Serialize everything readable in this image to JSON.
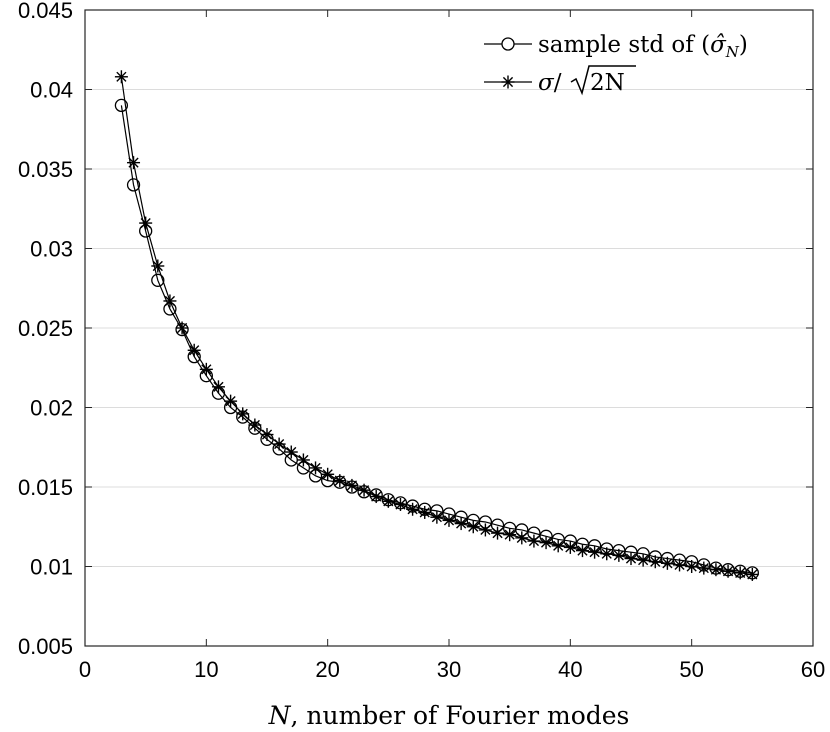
{
  "chart_data": {
    "type": "line",
    "xlabel": {
      "var": "N",
      "rest": ", number of Fourier modes"
    },
    "xlim": [
      0,
      60
    ],
    "ylim": [
      0.005,
      0.045
    ],
    "xticks": [
      0,
      10,
      20,
      30,
      40,
      50,
      60
    ],
    "yticks": [
      0.005,
      0.01,
      0.015,
      0.02,
      0.025,
      0.03,
      0.035,
      0.04,
      0.045
    ],
    "xtick_labels": [
      "0",
      "10",
      "20",
      "30",
      "40",
      "50",
      "60"
    ],
    "ytick_labels": [
      "0.005",
      "0.01",
      "0.015",
      "0.02",
      "0.025",
      "0.03",
      "0.035",
      "0.04",
      "0.045"
    ],
    "grid": "horizontal",
    "legend_position": "top-right",
    "x": [
      3,
      4,
      5,
      6,
      7,
      8,
      9,
      10,
      11,
      12,
      13,
      14,
      15,
      16,
      17,
      18,
      19,
      20,
      21,
      22,
      23,
      24,
      25,
      26,
      27,
      28,
      29,
      30,
      31,
      32,
      33,
      34,
      35,
      36,
      37,
      38,
      39,
      40,
      41,
      42,
      43,
      44,
      45,
      46,
      47,
      48,
      49,
      50,
      51,
      52,
      53,
      54,
      55
    ],
    "series": [
      {
        "name": "sample std of (σ̂_N)",
        "legend_label": {
          "text": "sample std of (",
          "sym": "σ̂",
          "sub": "N",
          "close": ")"
        },
        "marker": "circle",
        "values": [
          0.039,
          0.034,
          0.0311,
          0.028,
          0.0262,
          0.0249,
          0.0232,
          0.022,
          0.0209,
          0.02,
          0.0194,
          0.0187,
          0.018,
          0.0174,
          0.0167,
          0.0162,
          0.0157,
          0.0154,
          0.0153,
          0.015,
          0.0147,
          0.0145,
          0.0142,
          0.014,
          0.0138,
          0.0136,
          0.0135,
          0.0133,
          0.0131,
          0.0129,
          0.0128,
          0.0126,
          0.0124,
          0.0123,
          0.0121,
          0.0119,
          0.0117,
          0.0116,
          0.0114,
          0.0113,
          0.0111,
          0.011,
          0.0109,
          0.0108,
          0.0106,
          0.0105,
          0.0104,
          0.0103,
          0.0101,
          0.0099,
          0.0098,
          0.0097,
          0.0096
        ]
      },
      {
        "name": "σ/√2N",
        "legend_label": {
          "sym": "σ",
          "slash": "/",
          "rad": "2N"
        },
        "marker": "star",
        "values": [
          0.0408,
          0.0354,
          0.0316,
          0.0289,
          0.0267,
          0.025,
          0.0236,
          0.0224,
          0.0213,
          0.0204,
          0.0196,
          0.0189,
          0.0183,
          0.0177,
          0.0172,
          0.0167,
          0.0162,
          0.0158,
          0.0154,
          0.0151,
          0.0148,
          0.0144,
          0.0141,
          0.0139,
          0.0136,
          0.0134,
          0.0131,
          0.0129,
          0.0127,
          0.0125,
          0.0123,
          0.0121,
          0.012,
          0.0118,
          0.0116,
          0.0115,
          0.0113,
          0.0112,
          0.011,
          0.0109,
          0.0108,
          0.0107,
          0.0105,
          0.0104,
          0.0103,
          0.0102,
          0.0101,
          0.01,
          0.0099,
          0.0098,
          0.0097,
          0.0096,
          0.0095
        ]
      }
    ]
  },
  "colors": {
    "line": "#000000",
    "grid": "#dcdcdc",
    "axis": "#262626"
  }
}
